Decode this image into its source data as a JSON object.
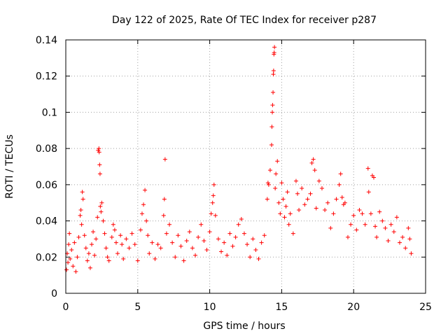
{
  "chart_data": {
    "type": "scatter",
    "title": "Day 122 of 2025, Rate Of TEC Index for receiver p287",
    "xlabel": "GPS time / hours",
    "ylabel": "ROTI / TECUs",
    "xlim": [
      0,
      25
    ],
    "ylim": [
      0,
      0.14
    ],
    "xticks": [
      0,
      5,
      10,
      15,
      20,
      25
    ],
    "xtick_labels": [
      "0",
      "5",
      "10",
      "15",
      "20",
      "25"
    ],
    "yticks": [
      0,
      0.02,
      0.04,
      0.06,
      0.08,
      0.1,
      0.12,
      0.14
    ],
    "ytick_labels": [
      "0",
      "0.02",
      "0.04",
      "0.06",
      "0.08",
      "0.1",
      "0.12",
      "0.14"
    ],
    "grid": true,
    "marker": "+",
    "color": "#ff0000",
    "series": [
      {
        "name": "ROTI",
        "points": [
          [
            0.05,
            0.013
          ],
          [
            0.1,
            0.022
          ],
          [
            0.15,
            0.017
          ],
          [
            0.2,
            0.027
          ],
          [
            0.25,
            0.033
          ],
          [
            0.3,
            0.019
          ],
          [
            0.4,
            0.024
          ],
          [
            0.5,
            0.015
          ],
          [
            0.6,
            0.028
          ],
          [
            0.7,
            0.012
          ],
          [
            0.8,
            0.02
          ],
          [
            0.9,
            0.031
          ],
          [
            1.0,
            0.043
          ],
          [
            1.05,
            0.046
          ],
          [
            1.1,
            0.038
          ],
          [
            1.15,
            0.056
          ],
          [
            1.2,
            0.052
          ],
          [
            1.3,
            0.032
          ],
          [
            1.4,
            0.025
          ],
          [
            1.5,
            0.018
          ],
          [
            1.6,
            0.022
          ],
          [
            1.7,
            0.014
          ],
          [
            1.8,
            0.027
          ],
          [
            1.9,
            0.034
          ],
          [
            2.0,
            0.021
          ],
          [
            2.1,
            0.03
          ],
          [
            2.2,
            0.042
          ],
          [
            2.25,
            0.079
          ],
          [
            2.3,
            0.08
          ],
          [
            2.32,
            0.078
          ],
          [
            2.35,
            0.071
          ],
          [
            2.38,
            0.066
          ],
          [
            2.4,
            0.048
          ],
          [
            2.45,
            0.045
          ],
          [
            2.5,
            0.05
          ],
          [
            2.6,
            0.04
          ],
          [
            2.7,
            0.033
          ],
          [
            2.8,
            0.025
          ],
          [
            2.9,
            0.02
          ],
          [
            3.0,
            0.018
          ],
          [
            3.2,
            0.031
          ],
          [
            3.3,
            0.038
          ],
          [
            3.4,
            0.035
          ],
          [
            3.5,
            0.028
          ],
          [
            3.6,
            0.022
          ],
          [
            3.8,
            0.032
          ],
          [
            3.9,
            0.027
          ],
          [
            4.0,
            0.019
          ],
          [
            4.2,
            0.03
          ],
          [
            4.4,
            0.025
          ],
          [
            4.6,
            0.033
          ],
          [
            4.8,
            0.027
          ],
          [
            5.0,
            0.018
          ],
          [
            5.2,
            0.035
          ],
          [
            5.3,
            0.044
          ],
          [
            5.4,
            0.049
          ],
          [
            5.5,
            0.057
          ],
          [
            5.6,
            0.04
          ],
          [
            5.7,
            0.032
          ],
          [
            5.8,
            0.022
          ],
          [
            6.0,
            0.028
          ],
          [
            6.2,
            0.019
          ],
          [
            6.4,
            0.027
          ],
          [
            6.6,
            0.025
          ],
          [
            6.8,
            0.043
          ],
          [
            6.85,
            0.052
          ],
          [
            6.9,
            0.074
          ],
          [
            7.0,
            0.033
          ],
          [
            7.2,
            0.038
          ],
          [
            7.4,
            0.028
          ],
          [
            7.6,
            0.02
          ],
          [
            7.8,
            0.032
          ],
          [
            8.0,
            0.026
          ],
          [
            8.2,
            0.018
          ],
          [
            8.4,
            0.029
          ],
          [
            8.6,
            0.034
          ],
          [
            8.8,
            0.025
          ],
          [
            9.0,
            0.021
          ],
          [
            9.2,
            0.031
          ],
          [
            9.4,
            0.038
          ],
          [
            9.6,
            0.029
          ],
          [
            9.8,
            0.024
          ],
          [
            10.0,
            0.034
          ],
          [
            10.1,
            0.044
          ],
          [
            10.2,
            0.05
          ],
          [
            10.25,
            0.054
          ],
          [
            10.3,
            0.06
          ],
          [
            10.4,
            0.043
          ],
          [
            10.6,
            0.03
          ],
          [
            10.8,
            0.023
          ],
          [
            11.0,
            0.028
          ],
          [
            11.2,
            0.021
          ],
          [
            11.4,
            0.033
          ],
          [
            11.6,
            0.026
          ],
          [
            11.8,
            0.031
          ],
          [
            12.0,
            0.038
          ],
          [
            12.2,
            0.041
          ],
          [
            12.4,
            0.033
          ],
          [
            12.6,
            0.027
          ],
          [
            12.8,
            0.02
          ],
          [
            13.0,
            0.03
          ],
          [
            13.2,
            0.024
          ],
          [
            13.4,
            0.019
          ],
          [
            13.6,
            0.028
          ],
          [
            13.8,
            0.032
          ],
          [
            14.0,
            0.052
          ],
          [
            14.05,
            0.061
          ],
          [
            14.1,
            0.06
          ],
          [
            14.2,
            0.068
          ],
          [
            14.3,
            0.082
          ],
          [
            14.32,
            0.092
          ],
          [
            14.35,
            0.1
          ],
          [
            14.37,
            0.104
          ],
          [
            14.4,
            0.111
          ],
          [
            14.42,
            0.121
          ],
          [
            14.44,
            0.123
          ],
          [
            14.46,
            0.132
          ],
          [
            14.48,
            0.133
          ],
          [
            14.5,
            0.136
          ],
          [
            14.55,
            0.058
          ],
          [
            14.6,
            0.066
          ],
          [
            14.7,
            0.073
          ],
          [
            14.8,
            0.05
          ],
          [
            14.9,
            0.044
          ],
          [
            15.0,
            0.061
          ],
          [
            15.1,
            0.052
          ],
          [
            15.2,
            0.042
          ],
          [
            15.3,
            0.048
          ],
          [
            15.4,
            0.056
          ],
          [
            15.5,
            0.038
          ],
          [
            15.6,
            0.044
          ],
          [
            15.8,
            0.033
          ],
          [
            16.0,
            0.062
          ],
          [
            16.1,
            0.055
          ],
          [
            16.2,
            0.046
          ],
          [
            16.4,
            0.058
          ],
          [
            16.6,
            0.049
          ],
          [
            16.8,
            0.052
          ],
          [
            17.0,
            0.055
          ],
          [
            17.1,
            0.072
          ],
          [
            17.2,
            0.074
          ],
          [
            17.3,
            0.068
          ],
          [
            17.4,
            0.047
          ],
          [
            17.6,
            0.062
          ],
          [
            17.8,
            0.058
          ],
          [
            18.0,
            0.046
          ],
          [
            18.2,
            0.05
          ],
          [
            18.4,
            0.036
          ],
          [
            18.6,
            0.044
          ],
          [
            18.8,
            0.052
          ],
          [
            19.0,
            0.06
          ],
          [
            19.1,
            0.066
          ],
          [
            19.2,
            0.053
          ],
          [
            19.3,
            0.049
          ],
          [
            19.4,
            0.05
          ],
          [
            19.6,
            0.031
          ],
          [
            19.8,
            0.038
          ],
          [
            20.0,
            0.043
          ],
          [
            20.2,
            0.035
          ],
          [
            20.4,
            0.046
          ],
          [
            20.6,
            0.044
          ],
          [
            20.8,
            0.038
          ],
          [
            21.0,
            0.069
          ],
          [
            21.05,
            0.056
          ],
          [
            21.2,
            0.044
          ],
          [
            21.3,
            0.065
          ],
          [
            21.4,
            0.064
          ],
          [
            21.5,
            0.037
          ],
          [
            21.6,
            0.031
          ],
          [
            21.8,
            0.045
          ],
          [
            22.0,
            0.04
          ],
          [
            22.2,
            0.036
          ],
          [
            22.4,
            0.029
          ],
          [
            22.6,
            0.038
          ],
          [
            22.8,
            0.034
          ],
          [
            23.0,
            0.042
          ],
          [
            23.2,
            0.028
          ],
          [
            23.4,
            0.031
          ],
          [
            23.6,
            0.025
          ],
          [
            23.8,
            0.036
          ],
          [
            23.9,
            0.03
          ],
          [
            24.0,
            0.022
          ]
        ]
      }
    ]
  }
}
